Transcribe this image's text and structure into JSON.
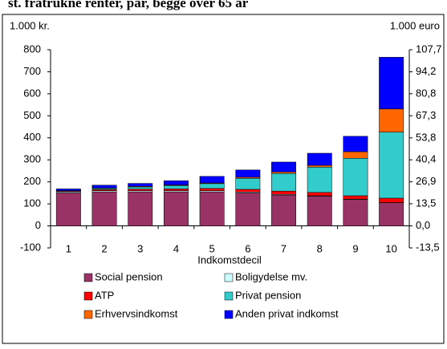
{
  "chart_data": {
    "type": "stacked-bar",
    "title": "st. fratrukne renter, par, begge over 65 år",
    "y_label": "1.000 kr.",
    "y2_label": "1.000 euro",
    "x_label": "Indkomstdecil",
    "categories": [
      "1",
      "2",
      "3",
      "4",
      "5",
      "6",
      "7",
      "8",
      "9",
      "10"
    ],
    "series": [
      {
        "name": "Social pension",
        "color": "#993366",
        "values": [
          150,
          155,
          155,
          155,
          155,
          150,
          140,
          135,
          120,
          105
        ]
      },
      {
        "name": "Boligydelse mv.",
        "color": "#ccffff",
        "values": [
          5,
          5,
          5,
          5,
          5,
          4,
          3,
          2,
          2,
          1
        ]
      },
      {
        "name": "ATP",
        "color": "#ff0000",
        "values": [
          3,
          5,
          7,
          8,
          10,
          12,
          15,
          15,
          15,
          20
        ]
      },
      {
        "name": "Privat pension",
        "color": "#33cccc",
        "values": [
          2,
          5,
          10,
          15,
          22,
          50,
          80,
          115,
          170,
          300
        ]
      },
      {
        "name": "Erhvervsindkomst",
        "color": "#ff6600",
        "values": [
          0,
          2,
          3,
          3,
          3,
          5,
          7,
          8,
          30,
          105
        ]
      },
      {
        "name": "Anden privat indkomst",
        "color": "#0000ff",
        "values": [
          8,
          13,
          13,
          19,
          30,
          33,
          45,
          55,
          70,
          235
        ]
      }
    ],
    "ylim": [
      -100,
      800
    ],
    "yticks": [
      -100,
      0,
      100,
      200,
      300,
      400,
      500,
      600,
      700,
      800
    ],
    "y2lim": [
      -13.5,
      107.7
    ],
    "y2ticks": [
      {
        "value": -13.5,
        "label": "-13,5"
      },
      {
        "value": 0,
        "label": "0,0"
      },
      {
        "value": 13.5,
        "label": "13,5"
      },
      {
        "value": 26.9,
        "label": "26,9"
      },
      {
        "value": 40.4,
        "label": "40,4"
      },
      {
        "value": 53.8,
        "label": "53,8"
      },
      {
        "value": 67.3,
        "label": "67,3"
      },
      {
        "value": 80.8,
        "label": "80,8"
      },
      {
        "value": 94.2,
        "label": "94,2"
      },
      {
        "value": 107.7,
        "label": "107,7"
      }
    ]
  }
}
